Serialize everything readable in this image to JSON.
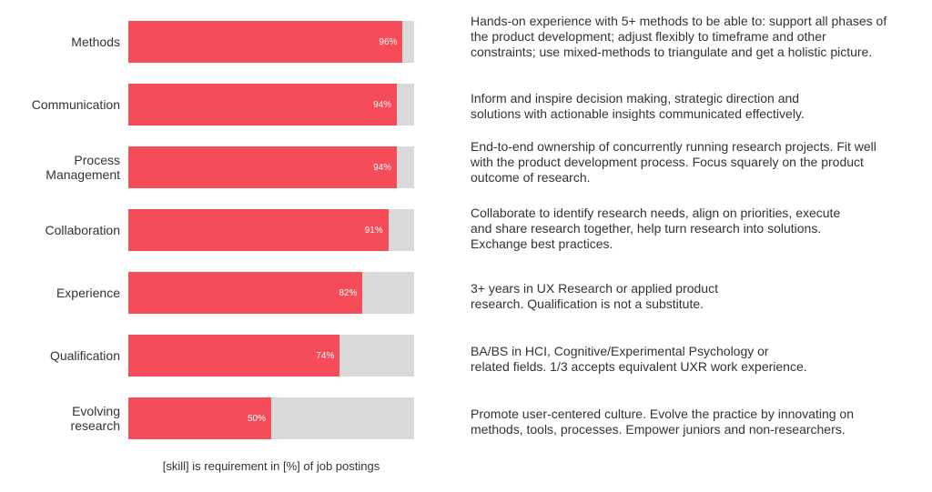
{
  "chart_data": {
    "type": "bar",
    "orientation": "horizontal",
    "categories": [
      "Methods",
      "Communication",
      "Process\nManagement",
      "Collaboration",
      "Experience",
      "Qualification",
      "Evolving\nresearch"
    ],
    "values": [
      96,
      94,
      94,
      91,
      82,
      74,
      50
    ],
    "value_labels": [
      "96%",
      "94%",
      "94%",
      "91%",
      "82%",
      "74%",
      "50%"
    ],
    "xlim": [
      0,
      100
    ],
    "caption": "[skill] is requirement in [%] of job postings",
    "grid": false,
    "descriptions": [
      [
        "Hands-on experience with 5+ methods to be able to: support all phases of",
        "the product development; adjust flexibly to timeframe and other",
        "constraints; use mixed-methods to triangulate and get a holistic picture."
      ],
      [
        "Inform and inspire decision making, strategic direction and",
        "solutions with actionable insights communicated effectively."
      ],
      [
        "End-to-end ownership of concurrently running research projects. Fit well",
        "with the product development process. Focus squarely on the product",
        "outcome of research."
      ],
      [
        "Collaborate to identify research needs, align on priorities, execute",
        "and share research together, help turn research into solutions.",
        "Exchange best practices."
      ],
      [
        "3+ years in UX Research or applied product",
        "research. Qualification is not a substitute."
      ],
      [
        "BA/BS in HCI, Cognitive/Experimental Psychology or",
        "related fields. 1/3 accepts equivalent UXR work experience."
      ],
      [
        "Promote user-centered culture. Evolve the practice by innovating on",
        "methods, tools, processes. Empower juniors and non-researchers."
      ]
    ],
    "colors": {
      "bar": "#f64c59",
      "track": "#d9d9d9",
      "value_text": "#ffffff"
    }
  }
}
